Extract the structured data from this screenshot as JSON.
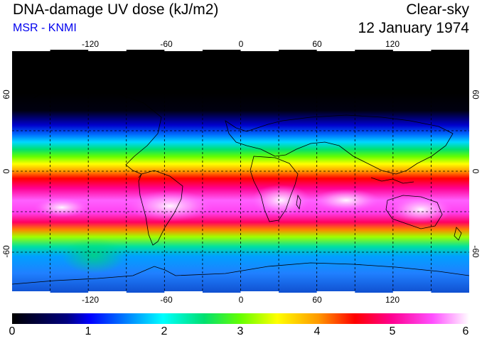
{
  "header": {
    "title": "DNA-damage UV dose (kJ/m2)",
    "source": "MSR - KNMI",
    "mode": "Clear-sky",
    "date": "12 January 1974"
  },
  "axes": {
    "lon_top": [
      "-120",
      "-60",
      "0",
      "60",
      "120"
    ],
    "lon_bottom": [
      "-120",
      "-60",
      "0",
      "60",
      "120"
    ],
    "lat_left": [
      "60",
      "0",
      "-60"
    ],
    "lat_right": [
      "60",
      "0",
      "-60"
    ]
  },
  "colorbar": {
    "ticks": [
      "0",
      "1",
      "2",
      "3",
      "4",
      "5",
      "6"
    ],
    "min": 0,
    "max": 6
  },
  "map_extent": {
    "lon_range": [
      -180,
      180
    ],
    "lat_range": [
      -90,
      90
    ],
    "grid_lons": [
      -150,
      -120,
      -90,
      -60,
      -30,
      0,
      30,
      60,
      90,
      120,
      150
    ],
    "grid_lats": [
      -60,
      -30,
      0,
      30,
      60
    ]
  },
  "colors": {
    "scale": [
      "#000000",
      "#0000cc",
      "#0060ff",
      "#00d8ff",
      "#00e070",
      "#66ff00",
      "#ffff00",
      "#ff9900",
      "#ff0000",
      "#ff0090",
      "#ff60ff",
      "#ffffff"
    ]
  }
}
